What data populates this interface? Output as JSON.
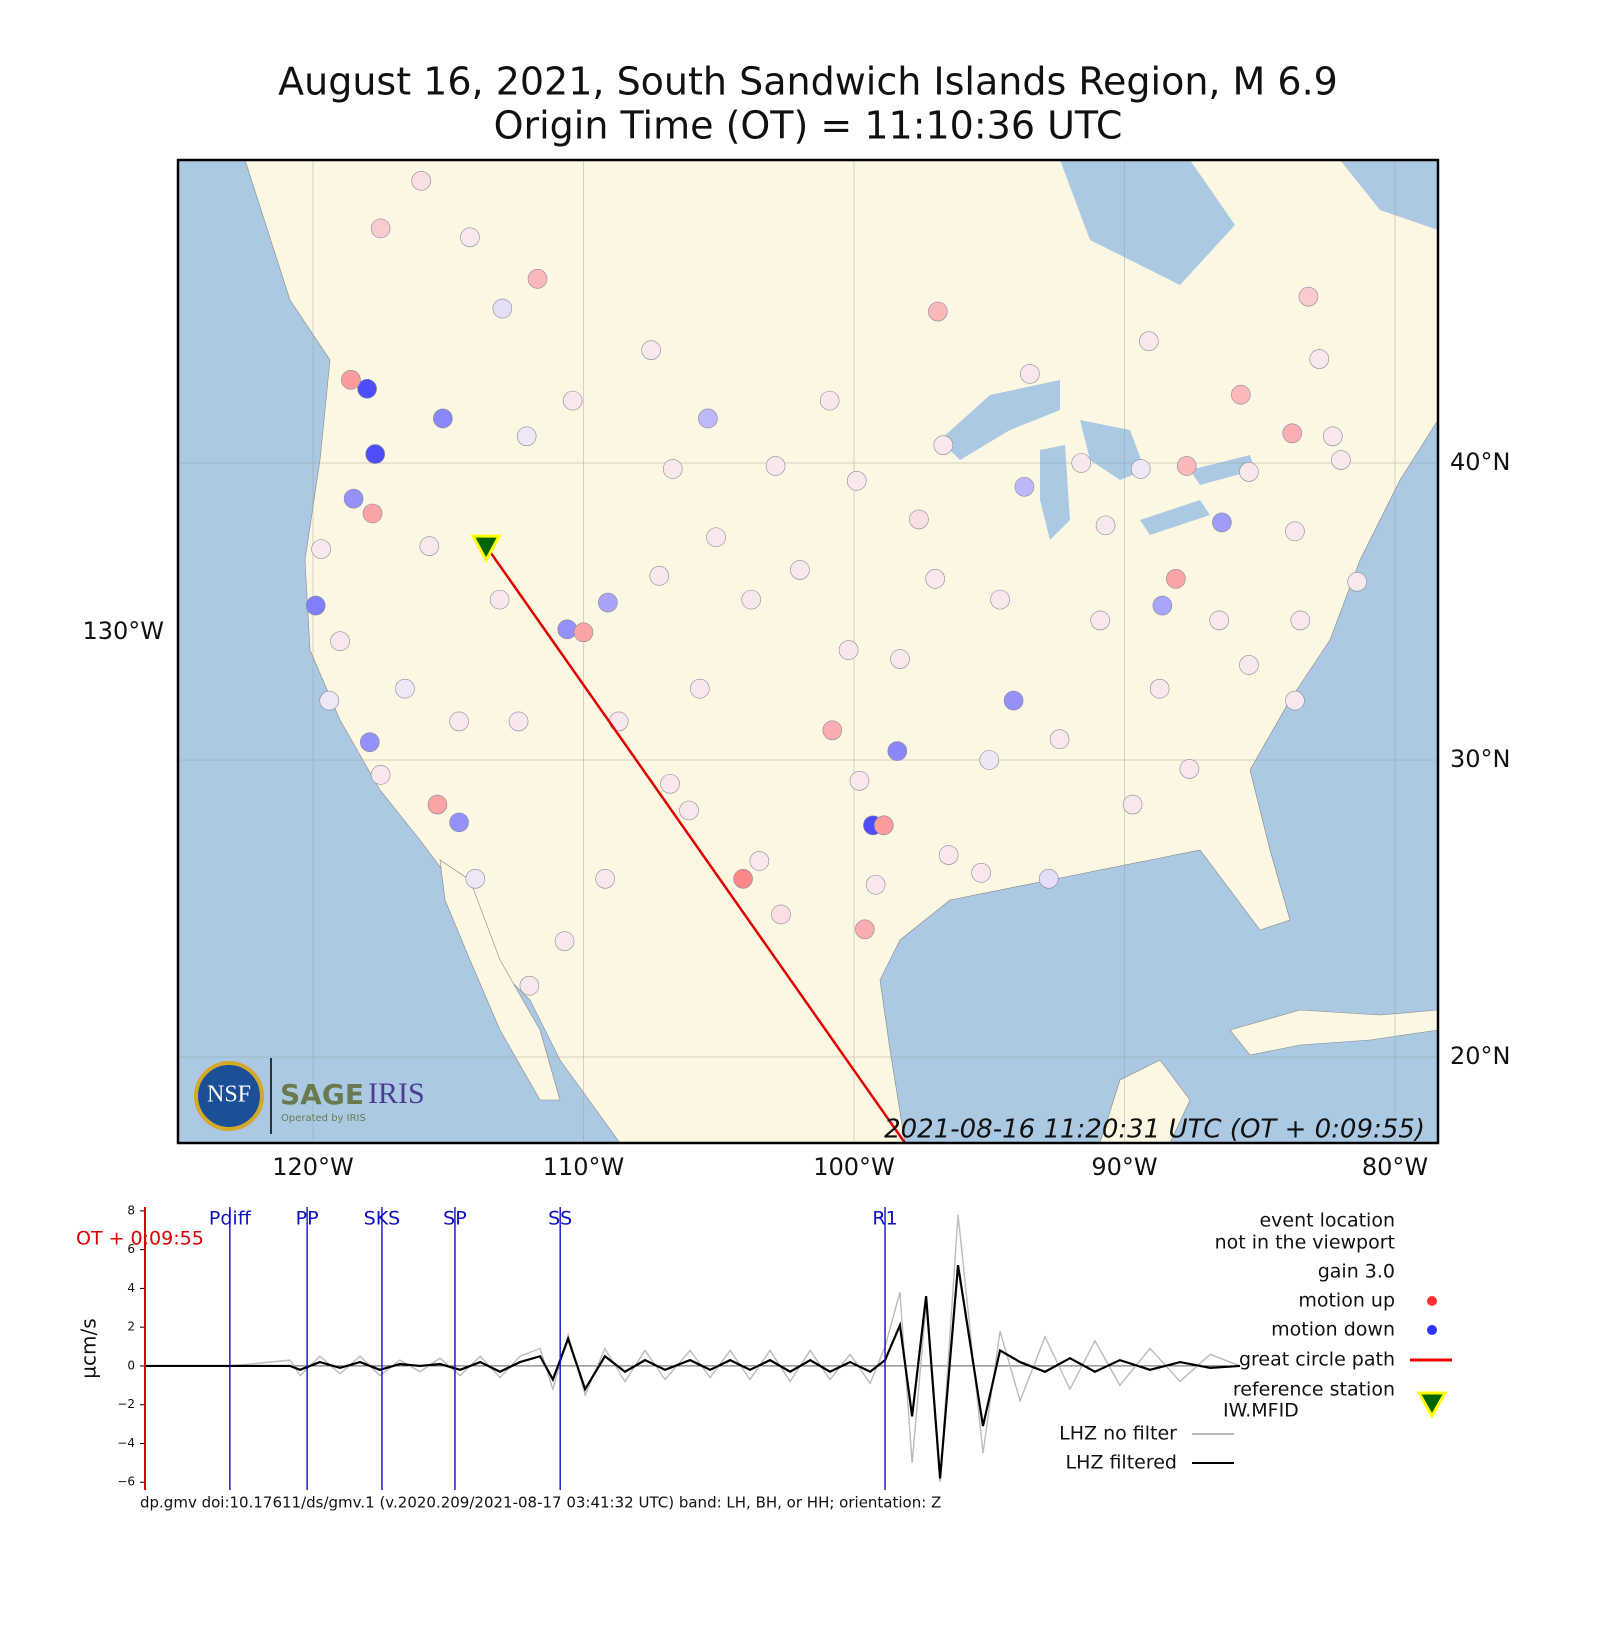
{
  "title": [
    "August 16, 2021, South Sandwich Islands Region, M 6.9",
    "Origin Time (OT) = 11:10:36 UTC"
  ],
  "map": {
    "lon_ticks": [
      {
        "value": -120,
        "label": "120°W"
      },
      {
        "value": -110,
        "label": "110°W"
      },
      {
        "value": -100,
        "label": "100°W"
      },
      {
        "value": -90,
        "label": "90°W"
      },
      {
        "value": -80,
        "label": "80°W"
      }
    ],
    "lat_ticks": [
      {
        "value": 40,
        "label": "40°N"
      },
      {
        "value": 30,
        "label": "30°N"
      },
      {
        "value": 20,
        "label": "20°N"
      }
    ],
    "left_label": "130°W",
    "timestamp": "2021-08-16 11:20:31 UTC (OT + 0:09:55)",
    "logo": {
      "nsf": "NSF",
      "sage": "SAGE",
      "iris": "IRIS",
      "operated": "Operated by IRIS"
    },
    "reference_station": {
      "lon": -113.6,
      "lat": 37.2,
      "color": "#006400",
      "edge": "#ffff00"
    },
    "up_color": "#ff3030",
    "down_color": "#3030ff",
    "stations": [
      [
        -118.0,
        42.5,
        -0.85
      ],
      [
        -117.7,
        40.3,
        -0.85
      ],
      [
        -119.9,
        35.2,
        -0.6
      ],
      [
        -99.3,
        27.8,
        -0.85
      ],
      [
        -94.1,
        32.0,
        -0.5
      ],
      [
        -98.4,
        30.3,
        -0.55
      ],
      [
        -110.6,
        34.4,
        -0.5
      ],
      [
        -109.1,
        35.3,
        -0.4
      ],
      [
        -86.4,
        38.0,
        -0.45
      ],
      [
        -115.2,
        41.5,
        -0.55
      ],
      [
        -105.4,
        41.5,
        -0.3
      ],
      [
        -114.6,
        27.9,
        -0.5
      ],
      [
        -117.9,
        30.6,
        -0.5
      ],
      [
        -118.5,
        38.8,
        -0.5
      ],
      [
        -88.6,
        35.2,
        -0.4
      ],
      [
        -93.7,
        39.2,
        -0.3
      ],
      [
        -118.6,
        42.8,
        0.45
      ],
      [
        -104.1,
        26.0,
        0.55
      ],
      [
        -98.9,
        27.8,
        0.45
      ],
      [
        -88.1,
        36.1,
        0.4
      ],
      [
        -87.7,
        39.9,
        0.3
      ],
      [
        -83.8,
        41.0,
        0.35
      ],
      [
        -96.9,
        45.1,
        0.3
      ],
      [
        -111.7,
        46.2,
        0.3
      ],
      [
        -110.0,
        34.3,
        0.4
      ],
      [
        -100.8,
        31.0,
        0.35
      ],
      [
        -99.6,
        24.3,
        0.35
      ],
      [
        -117.8,
        38.3,
        0.4
      ],
      [
        -115.4,
        28.5,
        0.4
      ],
      [
        -85.7,
        42.3,
        0.3
      ],
      [
        -117.5,
        47.9,
        0.2
      ],
      [
        -83.2,
        45.6,
        0.2
      ],
      [
        -114.2,
        47.6,
        0.05
      ],
      [
        -113.0,
        45.2,
        -0.1
      ],
      [
        -110.4,
        42.1,
        0.05
      ],
      [
        -112.1,
        40.9,
        -0.05
      ],
      [
        -106.7,
        39.8,
        0.05
      ],
      [
        -99.9,
        39.4,
        0.05
      ],
      [
        -97.6,
        38.1,
        0.1
      ],
      [
        -105.1,
        37.5,
        0.05
      ],
      [
        -102.9,
        39.9,
        0.05
      ],
      [
        -96.7,
        40.6,
        0.05
      ],
      [
        -91.6,
        40.0,
        0.05
      ],
      [
        -89.4,
        39.8,
        -0.05
      ],
      [
        -85.4,
        39.7,
        0.05
      ],
      [
        -82.3,
        40.9,
        0.05
      ],
      [
        -83.7,
        37.7,
        0.05
      ],
      [
        -81.4,
        36.0,
        0.05
      ],
      [
        -85.4,
        33.2,
        0.05
      ],
      [
        -83.7,
        32.0,
        0.05
      ],
      [
        -87.6,
        29.7,
        0.05
      ],
      [
        -89.7,
        28.5,
        0.05
      ],
      [
        -92.8,
        26.0,
        -0.1
      ],
      [
        -95.3,
        26.2,
        0.05
      ],
      [
        -96.5,
        26.8,
        0.05
      ],
      [
        -99.2,
        25.8,
        0.05
      ],
      [
        -102.7,
        24.8,
        0.1
      ],
      [
        -106.8,
        29.2,
        0.05
      ],
      [
        -109.2,
        26.0,
        0.05
      ],
      [
        -110.7,
        23.9,
        0.05
      ],
      [
        -112.0,
        22.4,
        0.05
      ],
      [
        -114.0,
        26.0,
        -0.05
      ],
      [
        -116.6,
        32.4,
        -0.05
      ],
      [
        -119.0,
        34.0,
        0.05
      ],
      [
        -119.7,
        37.1,
        0.05
      ],
      [
        -119.4,
        32.0,
        -0.05
      ],
      [
        -117.5,
        29.5,
        0.05
      ],
      [
        -114.6,
        31.3,
        0.05
      ],
      [
        -113.1,
        35.4,
        0.05
      ],
      [
        -115.7,
        37.2,
        0.05
      ],
      [
        -103.8,
        35.4,
        0.05
      ],
      [
        -102.0,
        36.4,
        0.05
      ],
      [
        -98.3,
        33.4,
        0.05
      ],
      [
        -94.6,
        35.4,
        0.05
      ],
      [
        -90.9,
        34.7,
        0.05
      ],
      [
        -88.7,
        32.4,
        0.05
      ],
      [
        -86.5,
        34.7,
        0.05
      ],
      [
        -83.5,
        34.7,
        0.05
      ],
      [
        -92.4,
        30.7,
        0.05
      ],
      [
        -95.0,
        30.0,
        -0.05
      ],
      [
        -107.2,
        36.2,
        0.05
      ],
      [
        -108.7,
        31.3,
        0.05
      ],
      [
        -105.7,
        32.4,
        0.05
      ],
      [
        -112.4,
        31.3,
        0.05
      ],
      [
        -100.2,
        33.7,
        0.05
      ],
      [
        -97.0,
        36.1,
        0.05
      ],
      [
        -90.7,
        37.9,
        0.05
      ],
      [
        -82.0,
        40.1,
        0.05
      ],
      [
        -82.8,
        43.5,
        0.05
      ],
      [
        -89.1,
        44.1,
        0.05
      ],
      [
        -93.5,
        43.0,
        0.05
      ],
      [
        -100.9,
        42.1,
        0.05
      ],
      [
        -107.5,
        43.8,
        0.05
      ],
      [
        -116.0,
        49.5,
        0.1
      ],
      [
        -99.8,
        29.3,
        0.05
      ],
      [
        -103.5,
        26.6,
        0.05
      ],
      [
        -106.1,
        28.3,
        0.05
      ]
    ]
  },
  "chart_data": {
    "type": "line",
    "y_label": "µcm/s",
    "xlim": [
      595,
      4195
    ],
    "ylim": [
      -6.4,
      8.2
    ],
    "yticks": [
      8,
      6,
      4,
      2,
      0,
      {
        "value": -2,
        "label": "−2"
      },
      {
        "value": -4,
        "label": "−4"
      },
      {
        "value": -6,
        "label": "−6"
      }
    ],
    "cursor": {
      "label": "OT + 0:09:55",
      "x": 595,
      "color": "#dd0000"
    },
    "phases": [
      {
        "name": "Pdiff",
        "x": 874
      },
      {
        "name": "PP",
        "x": 1128
      },
      {
        "name": "SKS",
        "x": 1374
      },
      {
        "name": "SP",
        "x": 1614
      },
      {
        "name": "SS",
        "x": 1960
      },
      {
        "name": "R1",
        "x": 3028
      }
    ],
    "phase_color": "#1010c0",
    "x": [
      595,
      874,
      1072,
      1105,
      1170,
      1236,
      1302,
      1367,
      1433,
      1499,
      1565,
      1631,
      1697,
      1762,
      1828,
      1894,
      1936,
      1986,
      2042,
      2107,
      2173,
      2239,
      2305,
      2387,
      2453,
      2519,
      2584,
      2650,
      2716,
      2782,
      2847,
      2913,
      2979,
      3028,
      3077,
      3117,
      3163,
      3209,
      3268,
      3350,
      3406,
      3472,
      3554,
      3636,
      3718,
      3800,
      3899,
      3998,
      4097,
      4195
    ],
    "series": [
      {
        "name": "LHZ no filter",
        "color": "#bbbbbb",
        "values": [
          0,
          0,
          0.3,
          -0.5,
          0.5,
          -0.4,
          0.5,
          -0.5,
          0.3,
          -0.3,
          0.4,
          -0.5,
          0.5,
          -0.6,
          0.5,
          0.9,
          -1.2,
          1.6,
          -1.5,
          0.9,
          -0.8,
          0.8,
          -0.7,
          0.8,
          -0.6,
          0.8,
          -0.7,
          0.8,
          -0.8,
          0.8,
          -0.7,
          0.6,
          -0.9,
          1.0,
          3.8,
          -5.0,
          3.2,
          -6.0,
          7.8,
          -4.5,
          1.8,
          -1.8,
          1.5,
          -1.2,
          1.3,
          -1.0,
          0.9,
          -0.8,
          0.6,
          0
        ]
      },
      {
        "name": "LHZ filtered",
        "color": "#000000",
        "values": [
          0,
          0,
          0,
          -0.2,
          0.2,
          -0.1,
          0.2,
          -0.2,
          0.1,
          0,
          0.1,
          -0.2,
          0.2,
          -0.3,
          0.2,
          0.5,
          -0.7,
          1.4,
          -1.2,
          0.5,
          -0.3,
          0.3,
          -0.2,
          0.3,
          -0.2,
          0.3,
          -0.2,
          0.3,
          -0.3,
          0.3,
          -0.3,
          0.2,
          -0.3,
          0.3,
          2.1,
          -2.6,
          3.6,
          -5.8,
          5.2,
          -3.1,
          0.8,
          0.2,
          -0.3,
          0.4,
          -0.3,
          0.3,
          -0.2,
          0.2,
          -0.1,
          0
        ]
      }
    ],
    "notes": [
      "event location",
      "not in the viewport",
      "gain  3.0"
    ],
    "legend": [
      {
        "label": "motion up",
        "color": "#ff3030"
      },
      {
        "label": "motion down",
        "color": "#3030ff"
      },
      {
        "label": "great circle path",
        "color": "#ee0000"
      },
      {
        "label": [
          "reference station",
          "IW.MFID"
        ],
        "color": "#006400"
      }
    ],
    "footer": "dp.gmv doi:10.17611/ds/gmv.1 (v.2020.209/2021-08-17 03:41:32 UTC) band: LH, BH, or HH; orientation: Z"
  }
}
